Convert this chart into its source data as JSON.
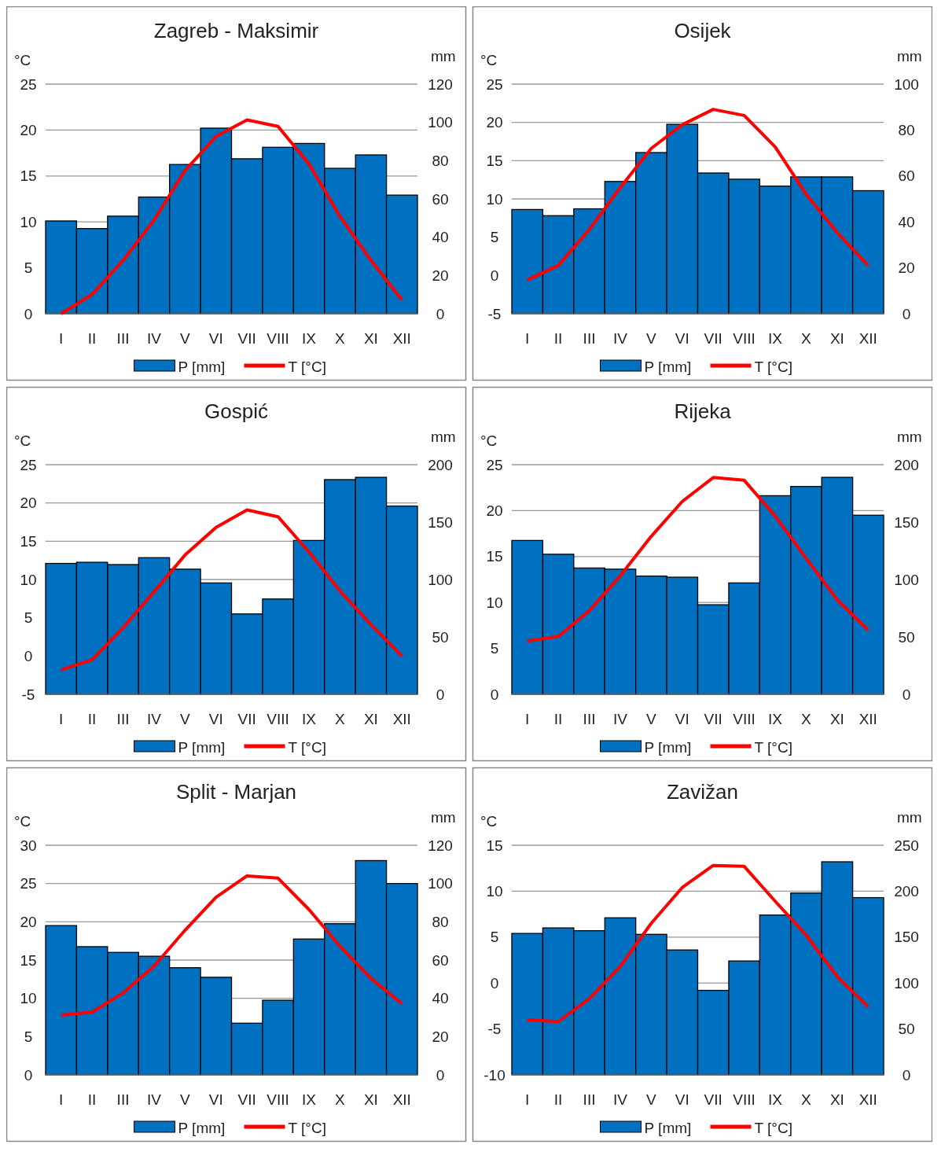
{
  "chart_data": [
    {
      "type": "bar",
      "title": "Zagreb - Maksimir",
      "categories": [
        "I",
        "II",
        "III",
        "IV",
        "V",
        "VI",
        "VII",
        "VIII",
        "IX",
        "X",
        "XI",
        "XII"
      ],
      "ylabel": "°C",
      "y2label": "mm",
      "ylim": [
        0,
        25
      ],
      "yticks": [
        0,
        5,
        10,
        15,
        20,
        25
      ],
      "y2lim": [
        0,
        120
      ],
      "y2ticks": [
        0,
        20,
        40,
        60,
        80,
        100,
        120
      ],
      "grid": "y",
      "legend": "bottom",
      "series": [
        {
          "name": "P [mm]",
          "axis": "y2",
          "color": "#0070c0",
          "values": [
            48.5,
            44.5,
            51,
            61,
            78,
            97,
            81,
            87,
            89,
            76,
            83,
            62
          ]
        },
        {
          "name": "T [°C]",
          "type": "line",
          "axis": "y",
          "color": "#ff0000",
          "values": [
            0,
            2.1,
            5.8,
            10.2,
            15.6,
            19.3,
            21.1,
            20.4,
            16.3,
            10.6,
            5.8,
            1.5
          ]
        }
      ]
    },
    {
      "type": "bar",
      "title": "Osijek",
      "categories": [
        "I",
        "II",
        "III",
        "IV",
        "V",
        "VI",
        "VII",
        "VIII",
        "IX",
        "X",
        "XI",
        "XII"
      ],
      "ylabel": "°C",
      "y2label": "mm",
      "ylim": [
        -5,
        25
      ],
      "yticks": [
        -5,
        0,
        5,
        10,
        15,
        20,
        25
      ],
      "y2lim": [
        0,
        100
      ],
      "y2ticks": [
        0,
        20,
        40,
        60,
        80,
        100
      ],
      "grid": "y",
      "legend": "bottom",
      "series": [
        {
          "name": "P [mm]",
          "axis": "y2",
          "color": "#0070c0",
          "values": [
            45.4,
            42.7,
            45.7,
            57.6,
            70.2,
            82.5,
            61.3,
            58.6,
            55.6,
            59.6,
            59.6,
            53.6
          ]
        },
        {
          "name": "T [°C]",
          "type": "line",
          "axis": "y",
          "color": "#ff0000",
          "values": [
            -0.6,
            1.3,
            6,
            11.5,
            16.6,
            19.7,
            21.7,
            20.9,
            16.8,
            10.6,
            5.6,
            1.3
          ]
        }
      ]
    },
    {
      "type": "bar",
      "title": "Gospić",
      "categories": [
        "I",
        "II",
        "III",
        "IV",
        "V",
        "VI",
        "VII",
        "VIII",
        "IX",
        "X",
        "XI",
        "XII"
      ],
      "ylabel": "°C",
      "y2label": "mm",
      "ylim": [
        -5,
        25
      ],
      "yticks": [
        -5,
        0,
        5,
        10,
        15,
        20,
        25
      ],
      "y2lim": [
        0,
        200
      ],
      "y2ticks": [
        0,
        50,
        100,
        150,
        200
      ],
      "grid": "y",
      "legend": "bottom",
      "series": [
        {
          "name": "P [mm]",
          "axis": "y2",
          "color": "#0070c0",
          "values": [
            114,
            115,
            113,
            119,
            109,
            97,
            70,
            83,
            134,
            187,
            189,
            164
          ]
        },
        {
          "name": "T [°C]",
          "type": "line",
          "axis": "y",
          "color": "#ff0000",
          "values": [
            -1.8,
            -0.5,
            3.7,
            8.4,
            13.2,
            16.8,
            19.1,
            18.2,
            13.6,
            8.5,
            4.1,
            0
          ]
        }
      ]
    },
    {
      "type": "bar",
      "title": "Rijeka",
      "categories": [
        "I",
        "II",
        "III",
        "IV",
        "V",
        "VI",
        "VII",
        "VIII",
        "IX",
        "X",
        "XI",
        "XII"
      ],
      "ylabel": "°C",
      "y2label": "mm",
      "ylim": [
        0,
        25
      ],
      "yticks": [
        0,
        5,
        10,
        15,
        20,
        25
      ],
      "y2lim": [
        0,
        200
      ],
      "y2ticks": [
        0,
        50,
        100,
        150,
        200
      ],
      "grid": "y",
      "legend": "bottom",
      "series": [
        {
          "name": "P [mm]",
          "axis": "y2",
          "color": "#0070c0",
          "values": [
            134,
            122,
            110,
            109,
            103,
            102,
            78,
            97,
            173,
            181,
            189,
            156
          ]
        },
        {
          "name": "T [°C]",
          "type": "line",
          "axis": "y",
          "color": "#ff0000",
          "values": [
            5.8,
            6.3,
            9.1,
            12.9,
            17.2,
            21,
            23.6,
            23.3,
            19.4,
            14.8,
            10.3,
            7
          ]
        }
      ]
    },
    {
      "type": "bar",
      "title": "Split - Marjan",
      "categories": [
        "I",
        "II",
        "III",
        "IV",
        "V",
        "VI",
        "VII",
        "VIII",
        "IX",
        "X",
        "XI",
        "XII"
      ],
      "ylabel": "°C",
      "y2label": "mm",
      "ylim": [
        0,
        30
      ],
      "yticks": [
        0,
        5,
        10,
        15,
        20,
        25,
        30
      ],
      "y2lim": [
        0,
        120
      ],
      "y2ticks": [
        0,
        20,
        40,
        60,
        80,
        100,
        120
      ],
      "grid": "y",
      "legend": "bottom",
      "series": [
        {
          "name": "P [mm]",
          "axis": "y2",
          "color": "#0070c0",
          "values": [
            78,
            67,
            64,
            62,
            56,
            51,
            27,
            39,
            71,
            79,
            112,
            100
          ]
        },
        {
          "name": "T [°C]",
          "type": "line",
          "axis": "y",
          "color": "#ff0000",
          "values": [
            7.8,
            8.2,
            10.7,
            14.2,
            18.9,
            23.2,
            26,
            25.7,
            21.6,
            16.8,
            12.6,
            9.3
          ]
        }
      ]
    },
    {
      "type": "bar",
      "title": "Zavižan",
      "categories": [
        "I",
        "II",
        "III",
        "IV",
        "V",
        "VI",
        "VII",
        "VIII",
        "IX",
        "X",
        "XI",
        "XII"
      ],
      "ylabel": "°C",
      "y2label": "mm",
      "ylim": [
        -10,
        15
      ],
      "yticks": [
        -10,
        -5,
        0,
        5,
        10,
        15
      ],
      "y2lim": [
        0,
        250
      ],
      "y2ticks": [
        0,
        50,
        100,
        150,
        200,
        250
      ],
      "grid": "y",
      "legend": "bottom",
      "series": [
        {
          "name": "P [mm]",
          "axis": "y2",
          "color": "#0070c0",
          "values": [
            154,
            160,
            157,
            171,
            153,
            136,
            92,
            124,
            174,
            198,
            232,
            193
          ]
        },
        {
          "name": "T [°C]",
          "type": "line",
          "axis": "y",
          "color": "#ff0000",
          "values": [
            -4,
            -4.2,
            -1.7,
            1.8,
            6.5,
            10.4,
            12.8,
            12.7,
            8.9,
            5.2,
            0.7,
            -2.6
          ]
        }
      ]
    }
  ]
}
